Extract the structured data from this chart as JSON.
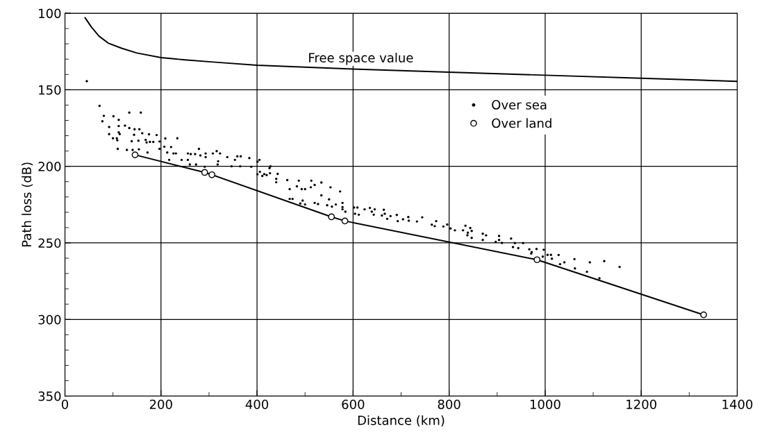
{
  "chart_data": {
    "type": "scatter",
    "xlabel": "Distance (km)",
    "ylabel": "Path loss (dB)",
    "xlim": [
      0,
      1400
    ],
    "ylim": [
      350,
      100
    ],
    "xticks": [
      0,
      {
        "value": 100,
        "label": null
      },
      200,
      {
        "value": 300,
        "label": null
      },
      400,
      {
        "value": 500,
        "label": null
      },
      600,
      {
        "value": 700,
        "label": null
      },
      800,
      {
        "value": 900,
        "label": null
      },
      1000,
      {
        "value": 1100,
        "label": null
      },
      1200,
      {
        "value": 1300,
        "label": null
      },
      1400
    ],
    "yticks": [
      100,
      {
        "value": 110,
        "label": null
      },
      {
        "value": 120,
        "label": null
      },
      {
        "value": 130,
        "label": null
      },
      {
        "value": 140,
        "label": null
      },
      150,
      {
        "value": 160,
        "label": null
      },
      {
        "value": 170,
        "label": null
      },
      {
        "value": 180,
        "label": null
      },
      {
        "value": 190,
        "label": null
      },
      200,
      {
        "value": 210,
        "label": null
      },
      {
        "value": 220,
        "label": null
      },
      {
        "value": 230,
        "label": null
      },
      {
        "value": 240,
        "label": null
      },
      250,
      {
        "value": 260,
        "label": null
      },
      {
        "value": 270,
        "label": null
      },
      {
        "value": 280,
        "label": null
      },
      {
        "value": 290,
        "label": null
      },
      300,
      {
        "value": 310,
        "label": null
      },
      {
        "value": 320,
        "label": null
      },
      {
        "value": 330,
        "label": null
      },
      {
        "value": 340,
        "label": null
      },
      350
    ],
    "grid": true,
    "legend": "top right",
    "annotations": [
      "Free space value"
    ],
    "series": [
      {
        "type": "line",
        "color": "#000000",
        "marker": "none",
        "x": [
          42,
          55,
          71,
          90,
          119,
          150,
          200,
          250,
          313,
          400,
          600,
          800,
          1000,
          1200,
          1400
        ],
        "values": [
          103,
          109,
          115,
          119.5,
          123,
          126,
          129,
          130.5,
          132,
          134,
          136.5,
          138.5,
          140.5,
          142.5,
          144.5
        ]
      },
      {
        "name": "Over sea",
        "color": "#000000",
        "marker": "circle",
        "x": [
          45.5,
          72,
          81,
          78,
          101,
          134,
          158,
          112,
          92,
          112,
          125,
          134,
          145,
          155,
          92,
          112,
          114,
          100,
          108,
          109,
          144,
          161,
          175,
          191,
          139,
          153,
          168,
          170,
          177,
          184,
          197,
          209,
          234,
          110,
          129,
          141,
          154,
          172,
          197,
          207,
          221,
          213,
          226,
          231,
          217,
          243,
          256,
          256,
          262,
          271,
          279,
          282,
          293,
          293,
          308,
          316,
          323,
          319,
          338,
          359,
          366,
          354,
          384,
          405,
          260,
          273,
          291,
          318,
          347,
          365,
          388,
          428,
          406,
          415,
          427,
          401,
          426,
          401,
          411,
          420,
          443,
          440,
          440,
          463,
          487,
          513,
          534,
          468,
          483,
          493,
          500,
          512,
          520,
          553,
          573,
          534,
          468,
          474,
          495,
          490,
          500,
          520,
          527,
          550,
          546,
          556,
          564,
          578,
          578,
          578,
          584,
          602,
          609,
          604,
          612,
          624,
          635,
          645,
          639,
          643,
          664,
          660,
          666,
          678,
          671,
          691,
          704,
          693,
          715,
          716,
          733,
          744,
          764,
          770,
          773,
          788,
          796,
          803,
          812,
          829,
          834,
          838,
          844,
          839,
          847,
          847,
          870,
          877,
          870,
          904,
          904,
          897,
          929,
          910,
          937,
          954,
          933,
          944,
          967,
          972,
          982,
          971,
          997,
          995,
          1005,
          1012,
          1014,
          1028,
          1031,
          1040,
          1061,
          1062,
          1087,
          1093,
          1113,
          1123,
          1155
        ],
        "values": [
          144.4,
          160.5,
          167,
          170.6,
          167.3,
          164.9,
          164.9,
          169.7,
          174.3,
          173.7,
          173.4,
          175,
          175.8,
          175.8,
          179,
          177.8,
          179,
          181.7,
          181.7,
          183,
          179.4,
          178.4,
          179.1,
          179.6,
          183.6,
          183.3,
          182.7,
          184.4,
          184.1,
          184.1,
          183.8,
          181.8,
          181.7,
          188.6,
          189.3,
          189.3,
          188.9,
          191,
          188.6,
          187.2,
          187.4,
          191,
          191.6,
          191.6,
          195.8,
          195.8,
          191.6,
          195.8,
          192,
          192,
          188.6,
          192.9,
          191.6,
          194,
          191.6,
          190.1,
          191.6,
          196.7,
          194,
          193.5,
          193.5,
          195.8,
          194.6,
          195.8,
          198.8,
          198.8,
          200.3,
          198.8,
          200,
          200,
          200.3,
          200,
          203.6,
          205.1,
          204.5,
          197,
          201.2,
          205.2,
          206.3,
          205.7,
          204.9,
          208.2,
          210.4,
          209,
          209.4,
          209.4,
          210.6,
          214.9,
          213.1,
          214.9,
          214.9,
          213.7,
          212.2,
          213.7,
          216.4,
          219,
          221.3,
          221.3,
          222.4,
          224.3,
          224.9,
          223.9,
          224.6,
          221.6,
          225.4,
          226.3,
          224.9,
          223.9,
          226.6,
          228.1,
          229.6,
          226.9,
          226.9,
          231,
          231.6,
          228.1,
          227.2,
          228.1,
          229.6,
          231.6,
          228.4,
          232.1,
          231,
          232.5,
          234.3,
          231.8,
          234.6,
          235.8,
          233.1,
          235.5,
          236,
          233.3,
          238.1,
          239.1,
          235.8,
          239.3,
          238,
          240.6,
          241.8,
          241.8,
          238.8,
          245,
          240.3,
          243.3,
          242.2,
          246.7,
          244,
          245.1,
          248.1,
          245.5,
          248.1,
          249.3,
          247.2,
          250,
          250.1,
          250.1,
          252.7,
          253.4,
          254.2,
          256,
          254,
          257,
          254.5,
          259,
          257.8,
          257.8,
          260.3,
          257.9,
          263.9,
          262.7,
          260.6,
          266.7,
          268.9,
          262.7,
          273.1,
          261.9,
          265.7
        ]
      },
      {
        "type": "line",
        "name": "Over land",
        "color": "#000000",
        "marker": "circle",
        "x": [
          146,
          291,
          306,
          555,
          583,
          983,
          1330
        ],
        "values": [
          192.5,
          204,
          205.5,
          233,
          235.7,
          261,
          297
        ]
      }
    ]
  }
}
